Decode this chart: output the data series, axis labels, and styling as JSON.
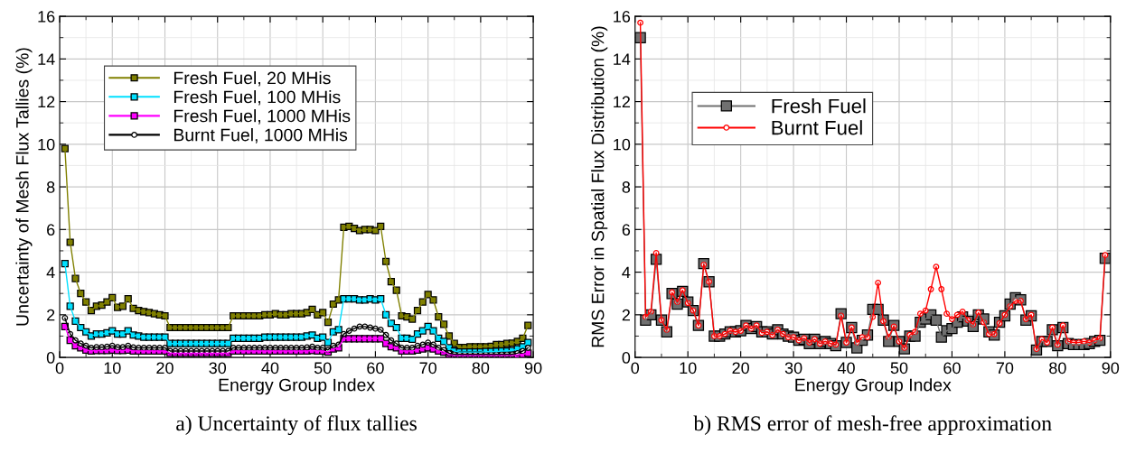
{
  "chart_data": [
    {
      "type": "line",
      "xlabel": "Energy Group Index",
      "ylabel": "Uncertainty of Mesh Flux Tallies (%)",
      "annotations": [
        "a) Uncertainty of flux tallies"
      ],
      "x": [
        1,
        2,
        3,
        4,
        5,
        6,
        7,
        8,
        9,
        10,
        11,
        12,
        13,
        14,
        15,
        16,
        17,
        18,
        19,
        20,
        21,
        22,
        23,
        24,
        25,
        26,
        27,
        28,
        29,
        30,
        31,
        32,
        33,
        34,
        35,
        36,
        37,
        38,
        39,
        40,
        41,
        42,
        43,
        44,
        45,
        46,
        47,
        48,
        49,
        50,
        51,
        52,
        53,
        54,
        55,
        56,
        57,
        58,
        59,
        60,
        61,
        62,
        63,
        64,
        65,
        66,
        67,
        68,
        69,
        70,
        71,
        72,
        73,
        74,
        75,
        76,
        77,
        78,
        79,
        80,
        81,
        82,
        83,
        84,
        85,
        86,
        87,
        88,
        89
      ],
      "xlim": [
        0,
        90
      ],
      "xticks": [
        0,
        10,
        20,
        30,
        40,
        50,
        60,
        70,
        80,
        90
      ],
      "ylim": [
        0,
        16
      ],
      "yticks": [
        0,
        2,
        4,
        6,
        8,
        10,
        12,
        14,
        16
      ],
      "grid": true,
      "legend": "top",
      "marker": "square",
      "line_style": "solid",
      "series": [
        {
          "name": "Fresh Fuel, 20 MHis",
          "color": "#808000",
          "values": [
            9.8,
            5.4,
            3.7,
            3.0,
            2.6,
            2.2,
            2.4,
            2.45,
            2.6,
            2.8,
            2.35,
            2.4,
            2.75,
            2.3,
            2.2,
            2.15,
            2.1,
            2.05,
            2.0,
            1.95,
            1.4,
            1.4,
            1.4,
            1.4,
            1.4,
            1.4,
            1.4,
            1.4,
            1.4,
            1.4,
            1.4,
            1.4,
            1.95,
            1.95,
            1.95,
            1.95,
            1.95,
            1.95,
            2.0,
            2.0,
            2.05,
            2.0,
            2.0,
            2.05,
            2.05,
            2.05,
            2.1,
            2.25,
            2.0,
            2.1,
            1.65,
            2.5,
            2.7,
            6.1,
            6.15,
            6.05,
            5.95,
            6.0,
            6.0,
            5.95,
            6.15,
            4.5,
            3.55,
            3.15,
            1.95,
            1.9,
            1.8,
            2.2,
            2.6,
            2.95,
            2.7,
            1.9,
            1.55,
            1.0,
            0.65,
            0.47,
            0.47,
            0.5,
            0.5,
            0.5,
            0.5,
            0.52,
            0.6,
            0.6,
            0.65,
            0.67,
            0.75,
            0.9,
            1.5
          ]
        },
        {
          "name": "Fresh Fuel, 100 MHis",
          "color": "#00e0ff",
          "values": [
            4.4,
            2.4,
            1.7,
            1.4,
            1.2,
            1.0,
            1.1,
            1.1,
            1.15,
            1.25,
            1.1,
            1.1,
            1.25,
            1.05,
            1.0,
            0.95,
            0.95,
            0.95,
            0.95,
            0.95,
            0.65,
            0.65,
            0.65,
            0.65,
            0.65,
            0.65,
            0.65,
            0.65,
            0.65,
            0.65,
            0.65,
            0.65,
            0.9,
            0.9,
            0.9,
            0.9,
            0.9,
            0.9,
            0.95,
            0.95,
            0.95,
            0.95,
            0.95,
            0.95,
            0.95,
            0.95,
            1.0,
            1.05,
            0.9,
            0.95,
            0.7,
            1.2,
            1.3,
            2.75,
            2.75,
            2.75,
            2.7,
            2.7,
            2.75,
            2.7,
            2.75,
            2.0,
            1.6,
            1.4,
            0.9,
            0.9,
            0.85,
            1.1,
            1.25,
            1.45,
            1.25,
            0.9,
            0.75,
            0.45,
            0.3,
            0.25,
            0.25,
            0.25,
            0.25,
            0.25,
            0.27,
            0.27,
            0.28,
            0.3,
            0.3,
            0.32,
            0.4,
            0.5,
            0.7
          ]
        },
        {
          "name": "Fresh Fuel, 1000 MHis",
          "color": "#ff00ff",
          "values": [
            1.45,
            0.8,
            0.55,
            0.45,
            0.35,
            0.3,
            0.32,
            0.32,
            0.33,
            0.35,
            0.32,
            0.32,
            0.35,
            0.3,
            0.3,
            0.3,
            0.3,
            0.3,
            0.3,
            0.3,
            0.2,
            0.2,
            0.2,
            0.2,
            0.2,
            0.2,
            0.2,
            0.2,
            0.2,
            0.2,
            0.2,
            0.2,
            0.3,
            0.3,
            0.3,
            0.3,
            0.3,
            0.3,
            0.3,
            0.3,
            0.3,
            0.3,
            0.3,
            0.3,
            0.3,
            0.3,
            0.3,
            0.32,
            0.3,
            0.3,
            0.25,
            0.4,
            0.45,
            0.88,
            0.88,
            0.88,
            0.88,
            0.88,
            0.88,
            0.88,
            0.88,
            0.65,
            0.5,
            0.45,
            0.3,
            0.3,
            0.3,
            0.35,
            0.4,
            0.45,
            0.4,
            0.3,
            0.25,
            0.15,
            0.1,
            0.1,
            0.1,
            0.1,
            0.1,
            0.1,
            0.1,
            0.1,
            0.1,
            0.1,
            0.1,
            0.1,
            0.12,
            0.15,
            0.2
          ]
        },
        {
          "name": "Burnt Fuel, 1000 MHis",
          "color": "#000000",
          "marker": "circle",
          "values": [
            1.85,
            1.1,
            0.8,
            0.65,
            0.55,
            0.45,
            0.48,
            0.48,
            0.5,
            0.55,
            0.48,
            0.48,
            0.55,
            0.47,
            0.45,
            0.45,
            0.45,
            0.45,
            0.45,
            0.45,
            0.3,
            0.3,
            0.3,
            0.3,
            0.3,
            0.3,
            0.3,
            0.3,
            0.3,
            0.3,
            0.3,
            0.3,
            0.45,
            0.45,
            0.45,
            0.45,
            0.45,
            0.45,
            0.45,
            0.45,
            0.45,
            0.45,
            0.45,
            0.45,
            0.45,
            0.45,
            0.47,
            0.5,
            0.45,
            0.45,
            0.35,
            0.55,
            0.6,
            1.1,
            1.25,
            1.35,
            1.45,
            1.45,
            1.4,
            1.35,
            1.3,
            1.05,
            0.8,
            0.65,
            0.45,
            0.45,
            0.45,
            0.55,
            0.6,
            0.7,
            0.6,
            0.45,
            0.35,
            0.2,
            0.15,
            0.15,
            0.15,
            0.15,
            0.15,
            0.15,
            0.15,
            0.15,
            0.15,
            0.15,
            0.15,
            0.15,
            0.2,
            0.3,
            0.45
          ]
        }
      ]
    },
    {
      "type": "line",
      "xlabel": "Energy Group Index",
      "ylabel": "RMS Error in Spatial Flux Distribution (%)",
      "annotations": [
        "b) RMS error of mesh-free approximation"
      ],
      "x": [
        1,
        2,
        3,
        4,
        5,
        6,
        7,
        8,
        9,
        10,
        11,
        12,
        13,
        14,
        15,
        16,
        17,
        18,
        19,
        20,
        21,
        22,
        23,
        24,
        25,
        26,
        27,
        28,
        29,
        30,
        31,
        32,
        33,
        34,
        35,
        36,
        37,
        38,
        39,
        40,
        41,
        42,
        43,
        44,
        45,
        46,
        47,
        48,
        49,
        50,
        51,
        52,
        53,
        54,
        55,
        56,
        57,
        58,
        59,
        60,
        61,
        62,
        63,
        64,
        65,
        66,
        67,
        68,
        69,
        70,
        71,
        72,
        73,
        74,
        75,
        76,
        77,
        78,
        79,
        80,
        81,
        82,
        83,
        84,
        85,
        86,
        87,
        88,
        89
      ],
      "xlim": [
        0,
        90
      ],
      "xticks": [
        0,
        10,
        20,
        30,
        40,
        50,
        60,
        70,
        80,
        90
      ],
      "ylim": [
        0,
        16
      ],
      "yticks": [
        0,
        2,
        4,
        6,
        8,
        10,
        12,
        14,
        16
      ],
      "grid": true,
      "legend": "center",
      "line_style": "solid",
      "series": [
        {
          "name": "Fresh Fuel",
          "color": "#707070",
          "marker": "square",
          "values": [
            15.0,
            1.75,
            2.0,
            4.6,
            1.75,
            1.2,
            3.0,
            2.5,
            3.1,
            2.6,
            2.2,
            1.5,
            4.4,
            3.55,
            1.0,
            1.0,
            1.1,
            1.2,
            1.2,
            1.25,
            1.5,
            1.35,
            1.45,
            1.2,
            1.2,
            1.1,
            1.3,
            1.1,
            1.0,
            0.95,
            0.8,
            0.85,
            0.65,
            0.85,
            0.65,
            0.75,
            0.65,
            0.55,
            2.05,
            0.7,
            1.4,
            0.45,
            0.8,
            1.05,
            2.25,
            2.25,
            1.75,
            0.75,
            1.5,
            0.75,
            0.4,
            1.0,
            1.0,
            1.65,
            1.8,
            2.0,
            1.75,
            0.95,
            1.25,
            1.35,
            1.65,
            1.9,
            1.7,
            1.45,
            2.0,
            1.8,
            1.2,
            1.05,
            1.65,
            1.95,
            2.5,
            2.8,
            2.7,
            1.75,
            1.95,
            0.35,
            0.75,
            0.75,
            1.3,
            0.55,
            1.4,
            0.65,
            0.6,
            0.6,
            0.6,
            0.65,
            0.75,
            0.8,
            4.65
          ]
        },
        {
          "name": "Burnt Fuel",
          "color": "#ff0000",
          "marker": "circle",
          "values": [
            15.7,
            1.9,
            2.15,
            4.9,
            1.75,
            1.3,
            3.05,
            2.6,
            3.15,
            2.55,
            2.2,
            1.5,
            4.35,
            3.55,
            1.0,
            1.0,
            1.1,
            1.25,
            1.2,
            1.25,
            1.5,
            1.35,
            1.5,
            1.15,
            1.2,
            1.05,
            1.3,
            1.1,
            0.95,
            0.95,
            0.8,
            0.9,
            0.7,
            0.85,
            0.65,
            0.75,
            0.65,
            0.6,
            1.95,
            0.7,
            1.4,
            0.7,
            0.95,
            0.95,
            1.9,
            3.5,
            1.7,
            0.95,
            1.45,
            0.75,
            0.45,
            1.05,
            1.2,
            2.05,
            2.2,
            3.2,
            4.25,
            3.2,
            2.05,
            1.8,
            2.0,
            2.15,
            1.75,
            1.55,
            2.1,
            1.65,
            1.1,
            1.1,
            1.6,
            2.0,
            2.4,
            2.65,
            2.65,
            1.8,
            2.0,
            0.4,
            0.85,
            0.7,
            1.4,
            0.6,
            1.5,
            0.75,
            0.7,
            0.7,
            0.75,
            0.7,
            0.8,
            0.9,
            4.8
          ]
        }
      ]
    }
  ]
}
